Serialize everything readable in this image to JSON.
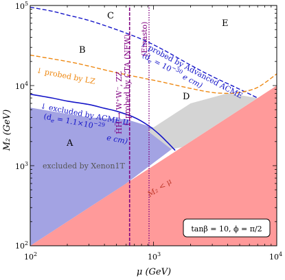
{
  "chart_data": {
    "type": "area",
    "xlabel": "μ (GeV)",
    "ylabel": "M₂ (GeV)",
    "xscale": "log",
    "yscale": "log",
    "xlim": [
      100,
      10000
    ],
    "ylim": [
      100,
      100000
    ],
    "x_ticks": [
      {
        "value": 100,
        "base": "10",
        "exp": "2"
      },
      {
        "value": 1000,
        "base": "10",
        "exp": "3"
      },
      {
        "value": 10000,
        "base": "10",
        "exp": "4"
      }
    ],
    "y_ticks": [
      {
        "value": 100,
        "base": "10",
        "exp": "2"
      },
      {
        "value": 1000,
        "base": "10",
        "exp": "3"
      },
      {
        "value": 10000,
        "base": "10",
        "exp": "4"
      },
      {
        "value": 100000,
        "base": "10",
        "exp": "5"
      }
    ],
    "grid": false,
    "regions": [
      {
        "name": "M2 < μ",
        "color": "#ff9a9a",
        "boundary": [
          [
            100,
            100
          ],
          [
            10000,
            10000
          ],
          [
            10000,
            100
          ]
        ]
      },
      {
        "name": "excluded by Xenon1T",
        "color": "#a3a3e3",
        "boundary": [
          [
            100,
            100
          ],
          [
            100,
            5300
          ],
          [
            300,
            4000
          ],
          [
            600,
            3800
          ],
          [
            1000,
            3000
          ],
          [
            1400,
            1600
          ],
          [
            600,
            600
          ]
        ]
      },
      {
        "name": "grey band",
        "color": "#d4d4d4",
        "boundary": [
          [
            900,
            2700
          ],
          [
            1400,
            1600
          ],
          [
            1700,
            1700
          ],
          [
            7000,
            7000
          ],
          [
            4000,
            8000
          ],
          [
            2000,
            6000
          ]
        ]
      }
    ],
    "series": [
      {
        "name": "excluded by ACME II",
        "color": "#1414c8",
        "style": "solid",
        "x": [
          100,
          150,
          200,
          300,
          400,
          500,
          700,
          900,
          1100,
          1300,
          1500
        ],
        "y": [
          7800,
          7000,
          6400,
          5800,
          5200,
          4800,
          4000,
          3200,
          2500,
          1950,
          1550
        ]
      },
      {
        "name": "probed by Advanced ACME",
        "color": "#1414c8",
        "style": "dashed",
        "x": [
          100,
          150,
          200,
          300,
          500,
          800,
          1200,
          2000,
          3000,
          5000,
          7000
        ],
        "y": [
          95000,
          85000,
          76000,
          65000,
          50000,
          38000,
          28000,
          18000,
          13000,
          9000,
          7000
        ]
      },
      {
        "name": "probed by LZ",
        "color": "#ee8811",
        "style": "dashed",
        "x": [
          100,
          200,
          300,
          500,
          800,
          1200,
          2000,
          3000,
          4000,
          5000,
          7000,
          10000
        ],
        "y": [
          24000,
          20000,
          17500,
          14500,
          12500,
          11000,
          9200,
          8200,
          8000,
          8200,
          9500,
          14000
        ]
      },
      {
        "name": "probed by CTA (NFW)",
        "color": "#800080",
        "style": "dashed",
        "x": [
          640,
          640
        ],
        "y": [
          100,
          100000
        ]
      },
      {
        "name": "Einasto",
        "color": "#800080",
        "style": "dotted",
        "x": [
          920,
          920
        ],
        "y": [
          100,
          100000
        ]
      }
    ],
    "region_letters": [
      "A",
      "B",
      "C",
      "D",
      "E"
    ],
    "annotations": {
      "acme2_l1": "↓ excluded by ACME II",
      "acme2_l2_pre": "(d",
      "acme2_l2_sub": "e",
      "acme2_l2_mid": " = 1.1×10",
      "acme2_l2_sup": "−29",
      "acme2_l3": "e cm)",
      "adv_l1": "↓ probed by Advanced ACME",
      "adv_l2_pre": "(d",
      "adv_l2_sub": "e",
      "adv_l2_mid": " = 10",
      "adv_l2_sup": "−30",
      "adv_l2_post": " e cm)",
      "lz": "↓ probed by LZ",
      "cta_l1": "H̃H̃ → W⁺W⁻, ZZ",
      "cta_l2": "↑ probed by CTA (NFW)",
      "einasto": "(Einasto)",
      "xenon": "excluded by Xenon1T",
      "m2mu": "M₂ < μ",
      "params": "tanβ = 10,    ϕ = π/2"
    }
  }
}
